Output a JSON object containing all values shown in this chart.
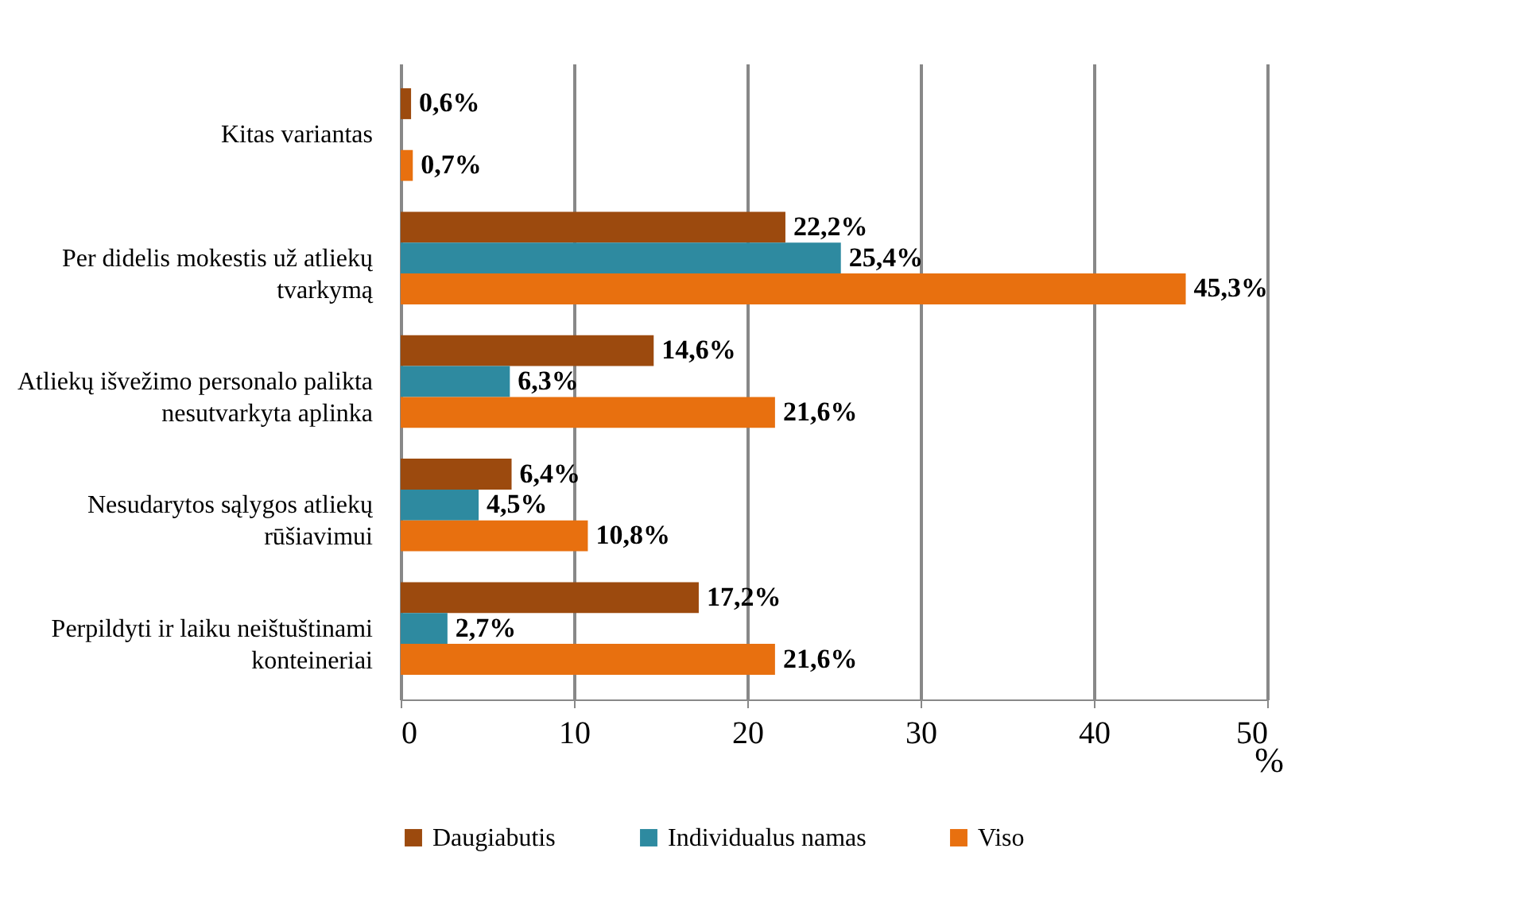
{
  "chart_data": {
    "type": "bar",
    "orientation": "horizontal",
    "xlabel": "%",
    "categories": [
      "Kitas variantas",
      "Per didelis mokestis už atliekų tvarkymą",
      "Atliekų išvežimo personalo palikta nesutvarkyta aplinka",
      "Nesudarytos sąlygos atliekų rūšiavimui",
      "Perpildyti ir laiku neištuštinami konteineriai"
    ],
    "series": [
      {
        "name": "Daugiabutis",
        "color": "#9c4a0e",
        "values": [
          0.6,
          22.2,
          14.6,
          6.4,
          17.2
        ],
        "value_labels": [
          "0,6%",
          "22,2%",
          "14,6%",
          "6,4%",
          "17,2%"
        ]
      },
      {
        "name": "Individualus namas",
        "color": "#2e8aa0",
        "values": [
          null,
          25.4,
          6.3,
          4.5,
          2.7
        ],
        "value_labels": [
          null,
          "25,4%",
          "6,3%",
          "4,5%",
          "2,7%"
        ]
      },
      {
        "name": "Viso",
        "color": "#e8700f",
        "values": [
          0.7,
          45.3,
          21.6,
          10.8,
          21.6
        ],
        "value_labels": [
          "0,7%",
          "45,3%",
          "21,6%",
          "10,8%",
          "21,6%"
        ]
      }
    ],
    "xlim": [
      0,
      50
    ],
    "xticks": [
      0,
      10,
      20,
      30,
      40,
      50
    ],
    "grid": "x",
    "legend": "bottom"
  }
}
